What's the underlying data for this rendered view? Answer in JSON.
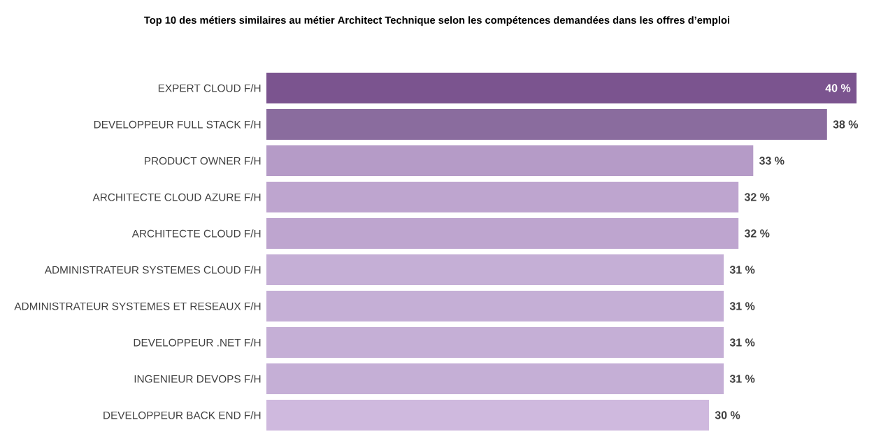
{
  "chart_data": {
    "type": "bar",
    "orientation": "horizontal",
    "title": "Top 10 des métiers similaires au métier Architect Technique selon les compétences demandées dans les offres d’emploi",
    "categories": [
      "EXPERT CLOUD F/H",
      "DEVELOPPEUR FULL STACK F/H",
      "PRODUCT OWNER F/H",
      "ARCHITECTE CLOUD AZURE F/H",
      "ARCHITECTE CLOUD F/H",
      "ADMINISTRATEUR SYSTEMES CLOUD F/H",
      "ADMINISTRATEUR SYSTEMES ET RESEAUX F/H",
      "DEVELOPPEUR .NET F/H",
      "INGENIEUR DEVOPS F/H",
      "DEVELOPPEUR BACK END F/H"
    ],
    "values": [
      40,
      38,
      33,
      32,
      32,
      31,
      31,
      31,
      31,
      30
    ],
    "value_labels": [
      "40 %",
      "38 %",
      "33 %",
      "32 %",
      "32 %",
      "31 %",
      "31 %",
      "31 %",
      "31 %",
      "30 %"
    ],
    "colors": [
      "#7b548f",
      "#8a6c9e",
      "#b59bc7",
      "#bea5cf",
      "#bea5cf",
      "#c5afd6",
      "#c5afd6",
      "#c5afd6",
      "#c5afd6",
      "#cfb9de"
    ]
  }
}
